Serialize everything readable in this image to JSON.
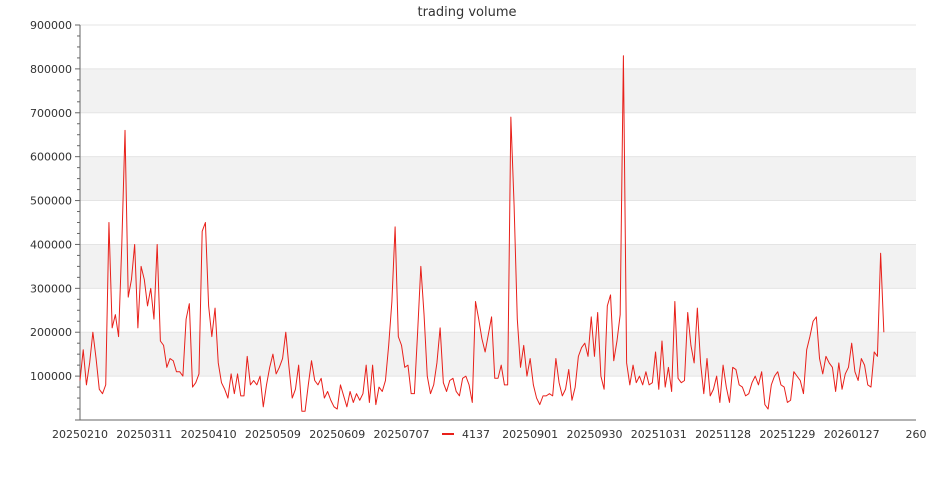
{
  "chart_data": {
    "type": "line",
    "title": "trading volume",
    "xlabel": "",
    "ylabel": "",
    "ylim": [
      0,
      900000
    ],
    "yticks": [
      {
        "value": 100000,
        "label": "100000"
      },
      {
        "value": 200000,
        "label": "200000"
      },
      {
        "value": 300000,
        "label": "300000"
      },
      {
        "value": 400000,
        "label": "400000"
      },
      {
        "value": 500000,
        "label": "500000"
      },
      {
        "value": 600000,
        "label": "600000"
      },
      {
        "value": 700000,
        "label": "700000"
      },
      {
        "value": 800000,
        "label": "800000"
      },
      {
        "value": 900000,
        "label": "900000"
      }
    ],
    "xlim": [
      0,
      260
    ],
    "xticks": [
      {
        "value": 0,
        "label": "20250210"
      },
      {
        "value": 20,
        "label": "20250311"
      },
      {
        "value": 40,
        "label": "20250410"
      },
      {
        "value": 60,
        "label": "20250509"
      },
      {
        "value": 80,
        "label": "20250609"
      },
      {
        "value": 100,
        "label": "20250707"
      },
      {
        "value": 140,
        "label": "20250901"
      },
      {
        "value": 160,
        "label": "20250930"
      },
      {
        "value": 180,
        "label": "20251031"
      },
      {
        "value": 200,
        "label": "20251128"
      },
      {
        "value": 220,
        "label": "20251229"
      },
      {
        "value": 240,
        "label": "20260127"
      },
      {
        "value": 260,
        "label": "260"
      }
    ],
    "grid": true,
    "band_color": "#f2f2f2",
    "legend": {
      "position": "bottom-center"
    },
    "series": [
      {
        "name": "4137",
        "color": "#e8201a",
        "values": [
          90000,
          160000,
          80000,
          130000,
          200000,
          140000,
          70000,
          60000,
          80000,
          450000,
          210000,
          240000,
          190000,
          400000,
          660000,
          280000,
          320000,
          400000,
          210000,
          350000,
          320000,
          260000,
          300000,
          230000,
          400000,
          180000,
          170000,
          120000,
          140000,
          135000,
          110000,
          110000,
          100000,
          230000,
          265000,
          75000,
          85000,
          105000,
          430000,
          450000,
          260000,
          190000,
          255000,
          130000,
          85000,
          70000,
          50000,
          105000,
          60000,
          105000,
          55000,
          55000,
          145000,
          80000,
          90000,
          80000,
          100000,
          30000,
          80000,
          120000,
          150000,
          105000,
          120000,
          140000,
          200000,
          120000,
          50000,
          70000,
          125000,
          20000,
          20000,
          80000,
          135000,
          90000,
          80000,
          95000,
          50000,
          65000,
          45000,
          30000,
          25000,
          80000,
          55000,
          30000,
          65000,
          40000,
          60000,
          45000,
          60000,
          125000,
          40000,
          125000,
          35000,
          75000,
          65000,
          90000,
          170000,
          270000,
          440000,
          190000,
          170000,
          120000,
          125000,
          60000,
          60000,
          200000,
          350000,
          240000,
          100000,
          60000,
          80000,
          130000,
          210000,
          85000,
          65000,
          90000,
          95000,
          65000,
          55000,
          95000,
          100000,
          80000,
          40000,
          270000,
          230000,
          185000,
          155000,
          195000,
          235000,
          95000,
          95000,
          125000,
          80000,
          80000,
          690000,
          490000,
          230000,
          120000,
          170000,
          100000,
          140000,
          80000,
          50000,
          35000,
          55000,
          55000,
          60000,
          55000,
          140000,
          85000,
          55000,
          70000,
          115000,
          45000,
          75000,
          145000,
          165000,
          175000,
          145000,
          235000,
          145000,
          245000,
          100000,
          70000,
          260000,
          285000,
          135000,
          180000,
          240000,
          830000,
          130000,
          80000,
          125000,
          85000,
          100000,
          80000,
          110000,
          80000,
          85000,
          155000,
          70000,
          180000,
          75000,
          120000,
          65000,
          270000,
          95000,
          85000,
          90000,
          245000,
          170000,
          130000,
          255000,
          130000,
          60000,
          140000,
          55000,
          70000,
          100000,
          40000,
          125000,
          75000,
          40000,
          120000,
          115000,
          80000,
          75000,
          55000,
          60000,
          85000,
          100000,
          80000,
          110000,
          35000,
          25000,
          80000,
          100000,
          110000,
          80000,
          75000,
          40000,
          45000,
          110000,
          100000,
          90000,
          60000,
          160000,
          190000,
          225000,
          235000,
          140000,
          105000,
          145000,
          130000,
          120000,
          65000,
          130000,
          70000,
          105000,
          120000,
          175000,
          110000,
          90000,
          140000,
          125000,
          80000,
          75000,
          155000,
          145000,
          380000,
          200000
        ]
      }
    ]
  }
}
